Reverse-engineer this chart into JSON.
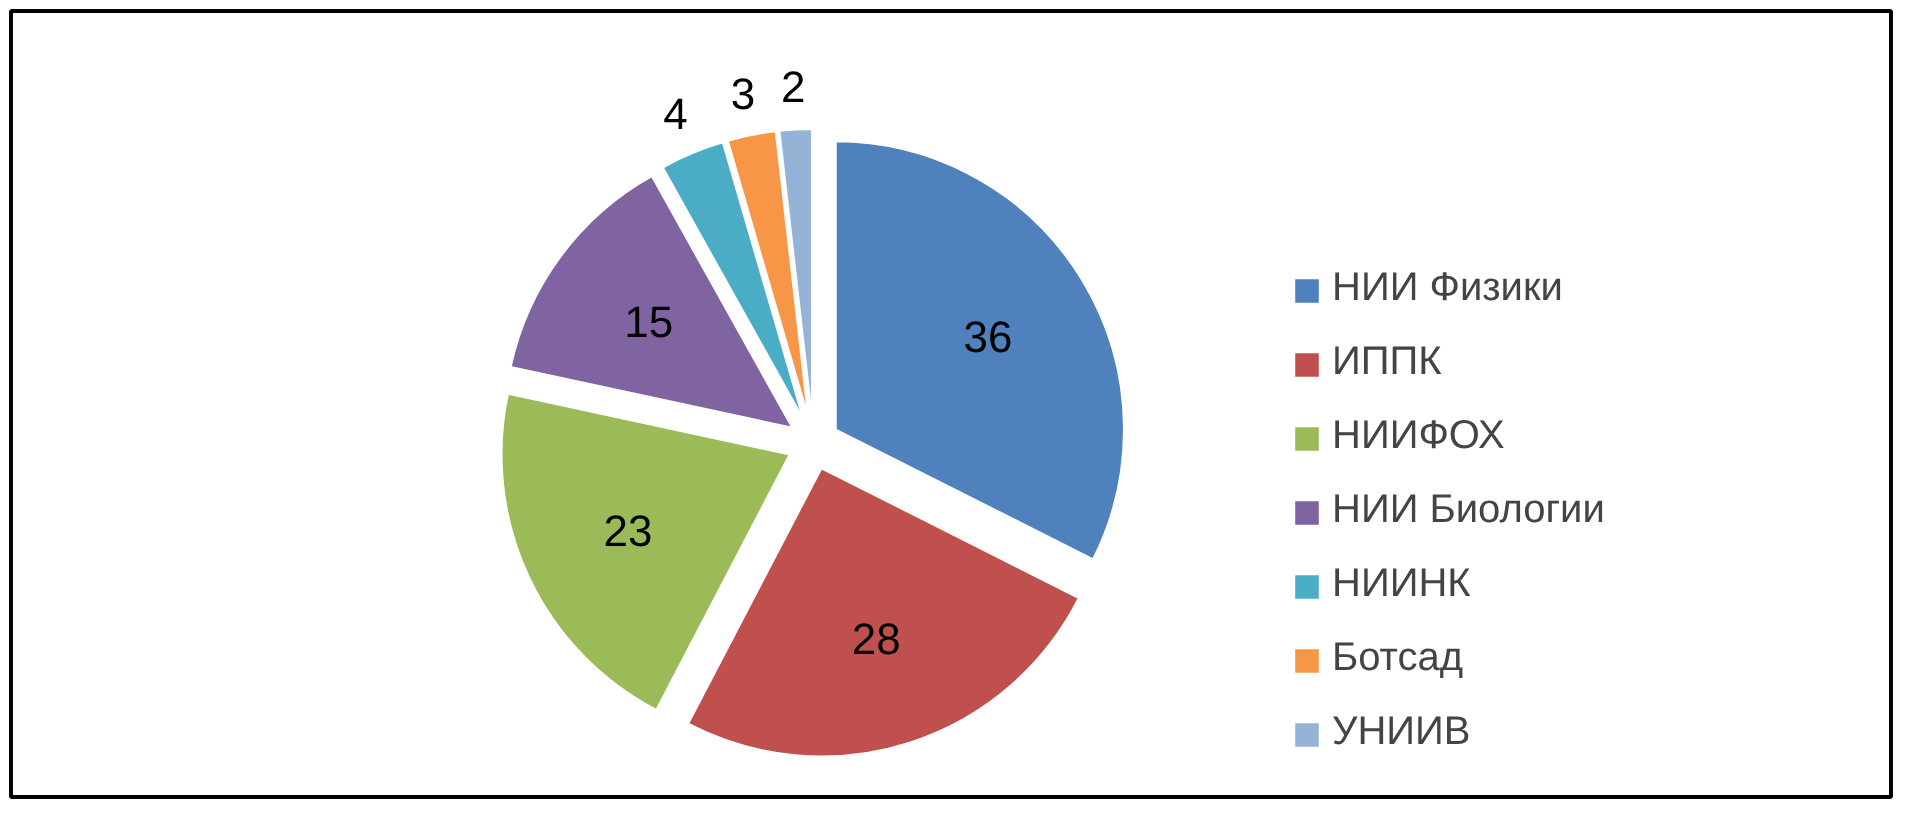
{
  "chart_data": {
    "type": "pie",
    "categories": [
      "НИИ Физики",
      "ИППК",
      "НИИФОХ",
      "НИИ Биологии",
      "НИИНК",
      "Ботсад",
      "УНИИВ"
    ],
    "values": [
      36,
      28,
      23,
      15,
      4,
      3,
      2
    ],
    "colors": [
      "#4f81bd",
      "#c0504d",
      "#9bbb59",
      "#8064a2",
      "#4bacc6",
      "#f79646",
      "#95b3d7"
    ],
    "data_labels": true,
    "legend": "right"
  }
}
